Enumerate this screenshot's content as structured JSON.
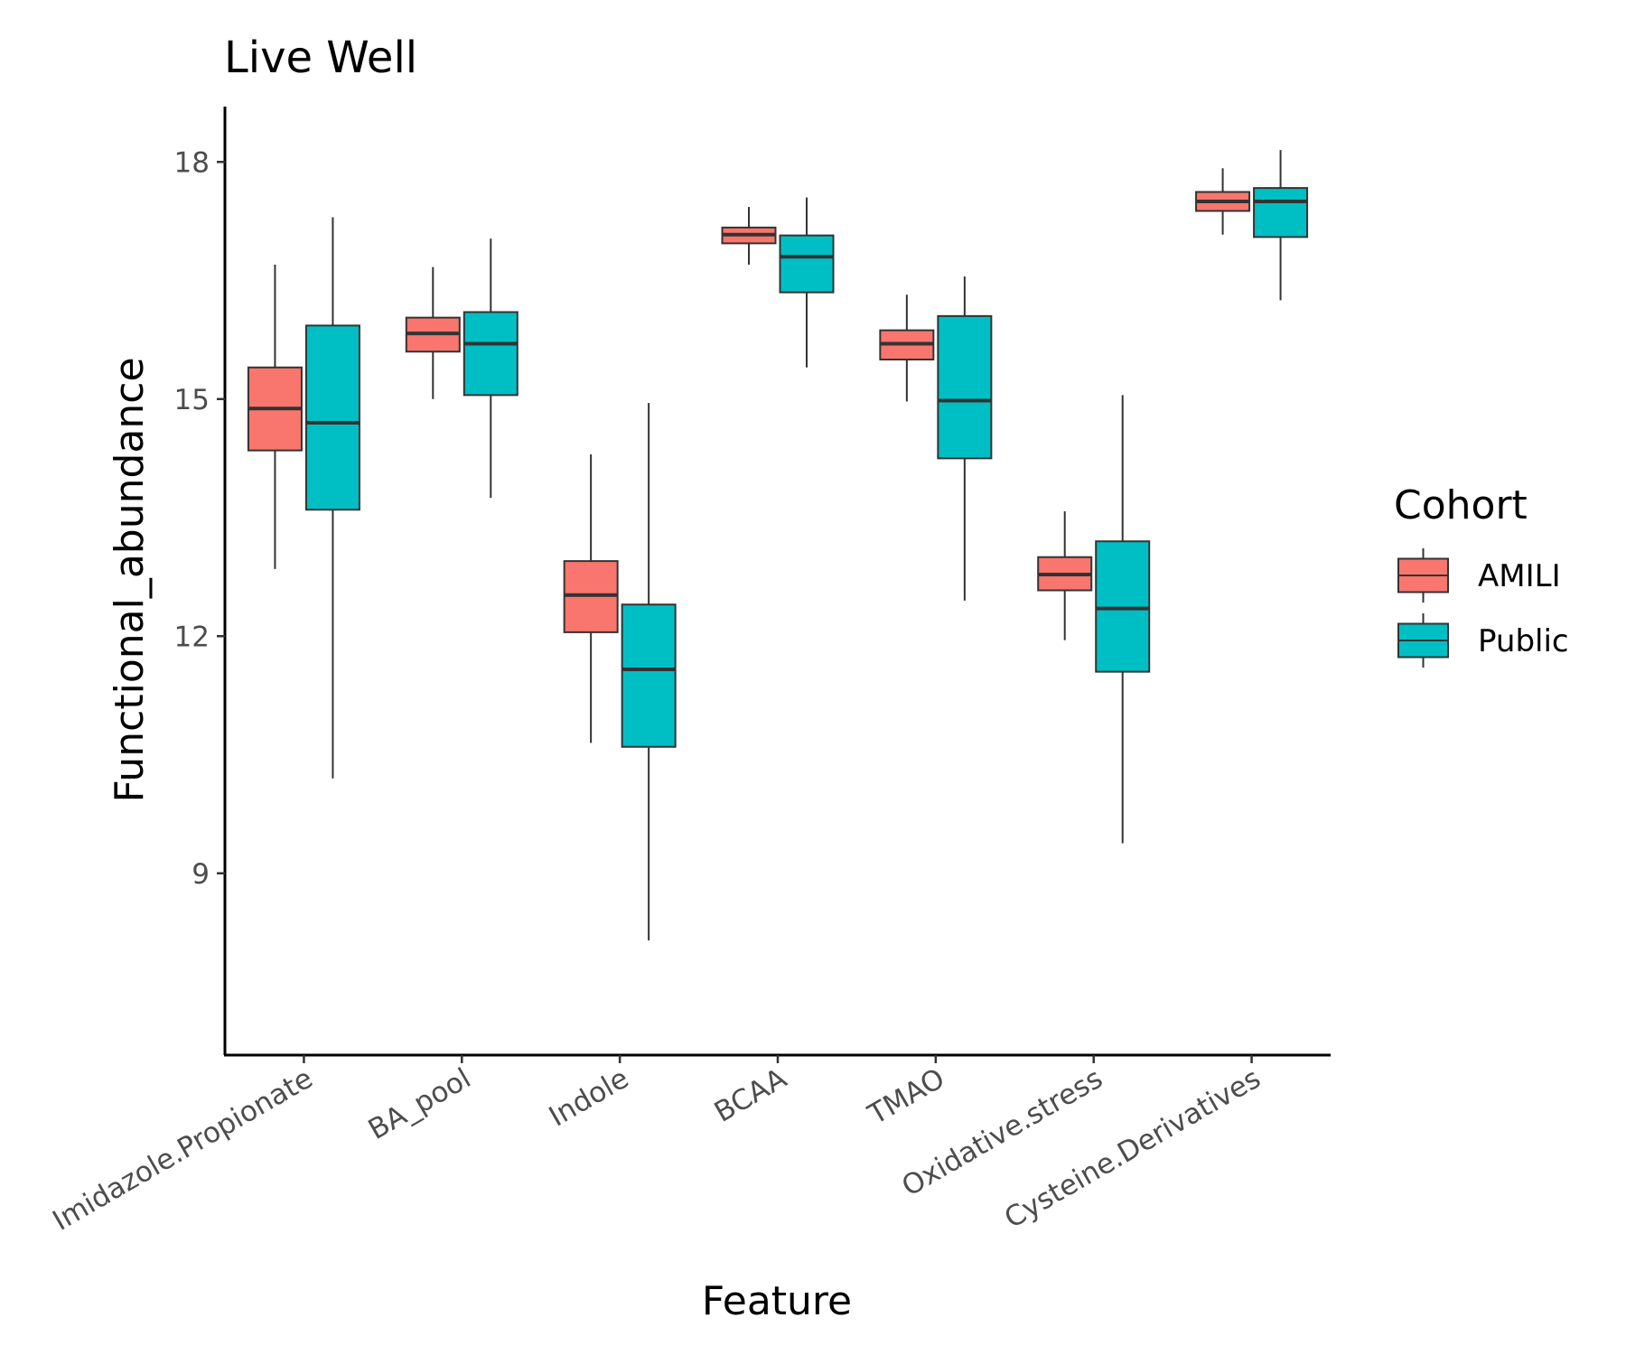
{
  "chart_data": {
    "type": "boxplot",
    "title": "Live Well",
    "xlabel": "Feature",
    "ylabel": "Functional_abundance",
    "ylim": [
      6.7,
      18.7
    ],
    "yticks": [
      9,
      12,
      15,
      18
    ],
    "grid": false,
    "legend": {
      "title": "Cohort",
      "placement": "right",
      "entries": [
        "AMILI",
        "Public"
      ]
    },
    "categories": [
      "Imidazole.Propionate",
      "BA_pool",
      "Indole",
      "BCAA",
      "TMAO",
      "Oxidative.stress",
      "Cysteine.Derivatives"
    ],
    "series": [
      {
        "name": "AMILI",
        "color": "#F8766D",
        "boxes": [
          {
            "min": 12.85,
            "q1": 14.35,
            "median": 14.88,
            "q3": 15.4,
            "max": 16.7
          },
          {
            "min": 15.0,
            "q1": 15.6,
            "median": 15.83,
            "q3": 16.03,
            "max": 16.67
          },
          {
            "min": 10.65,
            "q1": 12.05,
            "median": 12.52,
            "q3": 12.95,
            "max": 14.3
          },
          {
            "min": 16.7,
            "q1": 16.97,
            "median": 17.08,
            "q3": 17.17,
            "max": 17.43
          },
          {
            "min": 14.97,
            "q1": 15.5,
            "median": 15.7,
            "q3": 15.87,
            "max": 16.32
          },
          {
            "min": 11.95,
            "q1": 12.58,
            "median": 12.78,
            "q3": 13.0,
            "max": 13.58
          },
          {
            "min": 17.08,
            "q1": 17.38,
            "median": 17.5,
            "q3": 17.62,
            "max": 17.92
          }
        ]
      },
      {
        "name": "Public",
        "color": "#00BFC4",
        "boxes": [
          {
            "min": 10.2,
            "q1": 13.6,
            "median": 14.7,
            "q3": 15.93,
            "max": 17.3
          },
          {
            "min": 13.75,
            "q1": 15.05,
            "median": 15.7,
            "q3": 16.1,
            "max": 17.03
          },
          {
            "min": 8.15,
            "q1": 10.6,
            "median": 11.58,
            "q3": 12.4,
            "max": 14.95
          },
          {
            "min": 15.4,
            "q1": 16.35,
            "median": 16.8,
            "q3": 17.07,
            "max": 17.55
          },
          {
            "min": 12.45,
            "q1": 14.25,
            "median": 14.98,
            "q3": 16.05,
            "max": 16.55
          },
          {
            "min": 9.38,
            "q1": 11.55,
            "median": 12.35,
            "q3": 13.2,
            "max": 15.05
          },
          {
            "min": 16.25,
            "q1": 17.05,
            "median": 17.5,
            "q3": 17.67,
            "max": 18.15
          }
        ]
      }
    ]
  }
}
